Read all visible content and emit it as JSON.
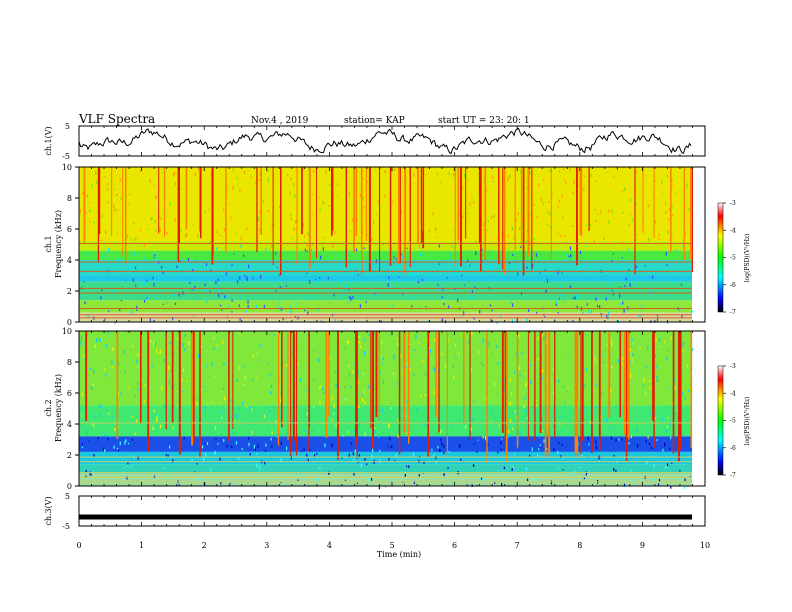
{
  "header": {
    "title": "VLF Spectra",
    "date": "Nov.4 , 2019",
    "station": "station= KAP",
    "start_ut": "start UT = 23: 20: 1"
  },
  "chart_data": [
    {
      "type": "line",
      "ylabel": "ch.1(V)",
      "ylim": [
        -5,
        5
      ],
      "ytick_labels": [
        "5",
        "-5"
      ],
      "xlim": [
        0,
        10
      ],
      "note": "noisy waveform fluctuating roughly between -5 and 5 V across the 10 minutes"
    },
    {
      "type": "heatmap",
      "ylabel": "ch.1\nFrequency (kHz)",
      "ylim": [
        0,
        10
      ],
      "ytick_labels": [
        "0",
        "2",
        "4",
        "6",
        "8",
        "10"
      ],
      "xlim": [
        0,
        10
      ],
      "colorbar": {
        "label": "log(PSD)(V²/Hz)",
        "range": [
          -7,
          -3
        ],
        "tick_labels": [
          "-3",
          "-4",
          "-5",
          "-6",
          "-7"
        ]
      }
    },
    {
      "type": "heatmap",
      "ylabel": "ch.2\nFrequency (kHz)",
      "ylim": [
        0,
        10
      ],
      "ytick_labels": [
        "0",
        "2",
        "4",
        "6",
        "8",
        "10"
      ],
      "xlim": [
        0,
        10
      ],
      "colorbar": {
        "label": "log(PSD)(V²/Hz)",
        "range": [
          -7,
          -3
        ],
        "tick_labels": [
          "-3",
          "-4",
          "-5",
          "-6",
          "-7"
        ]
      }
    },
    {
      "type": "line",
      "ylabel": "ch.3(V)",
      "ylim": [
        -5,
        5
      ],
      "ytick_labels": [
        "5",
        "-5"
      ],
      "xlim": [
        0,
        10
      ],
      "note": "flat thick line near -2 V"
    }
  ],
  "x_axis": {
    "label": "Time (min)",
    "tick_labels": [
      "0",
      "1",
      "2",
      "3",
      "4",
      "5",
      "6",
      "7",
      "8",
      "9",
      "10"
    ],
    "range": [
      0,
      10
    ]
  }
}
